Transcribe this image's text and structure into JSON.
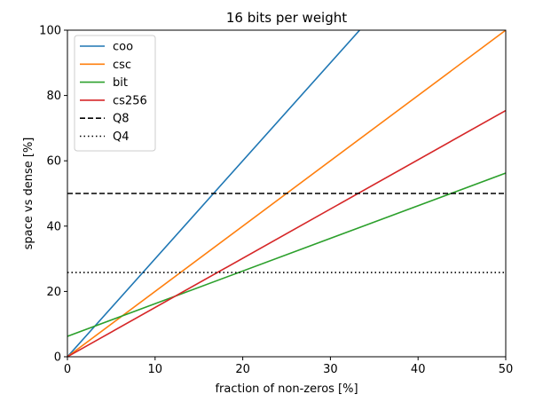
{
  "chart_data": {
    "type": "line",
    "title": "16 bits per weight",
    "xlabel": "fraction of non-zeros [%]",
    "ylabel": "space vs dense [%]",
    "xlim": [
      0,
      50
    ],
    "ylim": [
      0,
      100
    ],
    "xticks": [
      0,
      10,
      20,
      30,
      40,
      50
    ],
    "yticks": [
      0,
      20,
      40,
      60,
      80,
      100
    ],
    "grid": false,
    "legend_position": "top-left",
    "series": [
      {
        "name": "coo",
        "color": "#1f77b4",
        "style": "solid",
        "x": [
          0,
          50
        ],
        "y": [
          0,
          150
        ]
      },
      {
        "name": "csc",
        "color": "#ff7f0e",
        "style": "solid",
        "x": [
          0,
          50
        ],
        "y": [
          0,
          100
        ]
      },
      {
        "name": "bit",
        "color": "#2ca02c",
        "style": "solid",
        "x": [
          0,
          50
        ],
        "y": [
          6.25,
          56.25
        ]
      },
      {
        "name": "cs256",
        "color": "#d62728",
        "style": "solid",
        "x": [
          0,
          50
        ],
        "y": [
          0,
          75.4
        ]
      },
      {
        "name": "Q8",
        "color": "#000000",
        "style": "dashed",
        "x": [
          0,
          50
        ],
        "y": [
          50,
          50
        ]
      },
      {
        "name": "Q4",
        "color": "#000000",
        "style": "dotted",
        "x": [
          0,
          50
        ],
        "y": [
          25.8,
          25.8
        ]
      }
    ]
  }
}
